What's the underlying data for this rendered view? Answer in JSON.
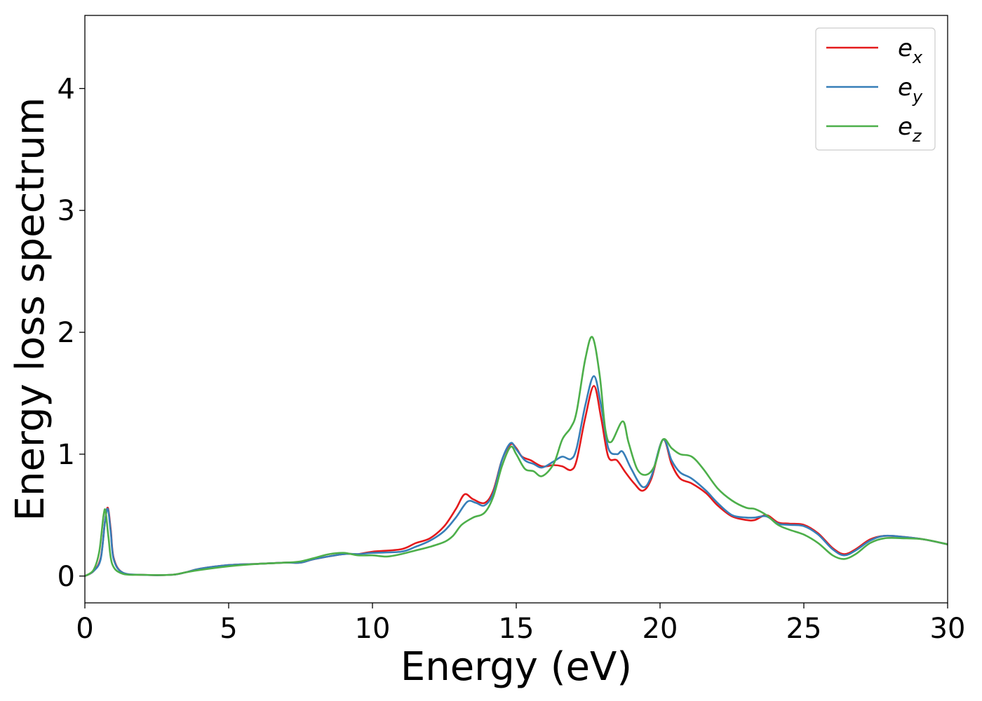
{
  "chart_data": {
    "type": "line",
    "xlabel": "Energy (eV)",
    "ylabel": "Energy loss spectrum",
    "xlim": [
      0,
      30
    ],
    "ylim": [
      -0.22,
      4.6
    ],
    "xticks": [
      0,
      5,
      10,
      15,
      20,
      25,
      30
    ],
    "yticks": [
      0,
      1,
      2,
      3,
      4
    ],
    "grid": false,
    "legend_position": "top-right",
    "series": [
      {
        "name": "e_x",
        "legend_base": "e",
        "legend_sub": "x",
        "color": "#e41a1c",
        "points": [
          [
            0,
            0
          ],
          [
            0.3,
            0.04
          ],
          [
            0.55,
            0.15
          ],
          [
            0.7,
            0.45
          ],
          [
            0.8,
            0.56
          ],
          [
            0.9,
            0.38
          ],
          [
            1.0,
            0.15
          ],
          [
            1.3,
            0.03
          ],
          [
            2,
            0.01
          ],
          [
            3,
            0.01
          ],
          [
            3.5,
            0.03
          ],
          [
            4,
            0.06
          ],
          [
            5,
            0.09
          ],
          [
            6,
            0.1
          ],
          [
            7,
            0.11
          ],
          [
            7.5,
            0.11
          ],
          [
            8,
            0.14
          ],
          [
            9,
            0.18
          ],
          [
            9.5,
            0.18
          ],
          [
            10,
            0.2
          ],
          [
            11,
            0.22
          ],
          [
            11.5,
            0.27
          ],
          [
            12,
            0.31
          ],
          [
            12.5,
            0.41
          ],
          [
            12.9,
            0.55
          ],
          [
            13.2,
            0.67
          ],
          [
            13.5,
            0.63
          ],
          [
            13.9,
            0.6
          ],
          [
            14.2,
            0.7
          ],
          [
            14.5,
            0.95
          ],
          [
            14.8,
            1.08
          ],
          [
            15.0,
            1.05
          ],
          [
            15.2,
            0.98
          ],
          [
            15.5,
            0.95
          ],
          [
            15.9,
            0.9
          ],
          [
            16.3,
            0.91
          ],
          [
            16.6,
            0.9
          ],
          [
            16.9,
            0.87
          ],
          [
            17.1,
            0.95
          ],
          [
            17.4,
            1.3
          ],
          [
            17.7,
            1.56
          ],
          [
            17.95,
            1.3
          ],
          [
            18.2,
            0.98
          ],
          [
            18.5,
            0.95
          ],
          [
            18.8,
            0.85
          ],
          [
            19.1,
            0.76
          ],
          [
            19.4,
            0.7
          ],
          [
            19.7,
            0.8
          ],
          [
            20.1,
            1.12
          ],
          [
            20.4,
            0.92
          ],
          [
            20.7,
            0.8
          ],
          [
            21.1,
            0.76
          ],
          [
            21.6,
            0.68
          ],
          [
            22.0,
            0.58
          ],
          [
            22.5,
            0.49
          ],
          [
            23.0,
            0.46
          ],
          [
            23.3,
            0.46
          ],
          [
            23.7,
            0.5
          ],
          [
            24.1,
            0.44
          ],
          [
            24.5,
            0.43
          ],
          [
            25.0,
            0.42
          ],
          [
            25.5,
            0.35
          ],
          [
            26.0,
            0.23
          ],
          [
            26.4,
            0.18
          ],
          [
            26.8,
            0.22
          ],
          [
            27.3,
            0.3
          ],
          [
            27.8,
            0.33
          ],
          [
            28.5,
            0.32
          ],
          [
            29.2,
            0.3
          ],
          [
            30,
            0.26
          ]
        ]
      },
      {
        "name": "e_y",
        "legend_base": "e",
        "legend_sub": "y",
        "color": "#377eb8",
        "points": [
          [
            0,
            0
          ],
          [
            0.3,
            0.04
          ],
          [
            0.55,
            0.14
          ],
          [
            0.7,
            0.45
          ],
          [
            0.8,
            0.55
          ],
          [
            0.9,
            0.36
          ],
          [
            1.0,
            0.14
          ],
          [
            1.3,
            0.03
          ],
          [
            2,
            0.01
          ],
          [
            3,
            0.01
          ],
          [
            3.5,
            0.03
          ],
          [
            4,
            0.06
          ],
          [
            5,
            0.09
          ],
          [
            6,
            0.1
          ],
          [
            7,
            0.11
          ],
          [
            7.5,
            0.11
          ],
          [
            8,
            0.14
          ],
          [
            9,
            0.18
          ],
          [
            9.5,
            0.18
          ],
          [
            10,
            0.19
          ],
          [
            11,
            0.2
          ],
          [
            11.5,
            0.24
          ],
          [
            12,
            0.29
          ],
          [
            12.5,
            0.37
          ],
          [
            12.9,
            0.48
          ],
          [
            13.3,
            0.61
          ],
          [
            13.6,
            0.6
          ],
          [
            13.9,
            0.58
          ],
          [
            14.2,
            0.68
          ],
          [
            14.5,
            0.95
          ],
          [
            14.8,
            1.09
          ],
          [
            15.0,
            1.04
          ],
          [
            15.3,
            0.95
          ],
          [
            15.6,
            0.92
          ],
          [
            15.9,
            0.89
          ],
          [
            16.3,
            0.94
          ],
          [
            16.6,
            0.98
          ],
          [
            16.9,
            0.96
          ],
          [
            17.1,
            1.05
          ],
          [
            17.4,
            1.4
          ],
          [
            17.7,
            1.64
          ],
          [
            17.95,
            1.4
          ],
          [
            18.2,
            1.05
          ],
          [
            18.5,
            1.0
          ],
          [
            18.7,
            1.02
          ],
          [
            19.0,
            0.88
          ],
          [
            19.4,
            0.73
          ],
          [
            19.7,
            0.82
          ],
          [
            20.1,
            1.12
          ],
          [
            20.4,
            0.95
          ],
          [
            20.7,
            0.85
          ],
          [
            21.1,
            0.8
          ],
          [
            21.6,
            0.7
          ],
          [
            22.0,
            0.6
          ],
          [
            22.5,
            0.5
          ],
          [
            23.0,
            0.48
          ],
          [
            23.3,
            0.48
          ],
          [
            23.7,
            0.49
          ],
          [
            24.1,
            0.43
          ],
          [
            24.5,
            0.42
          ],
          [
            25.0,
            0.41
          ],
          [
            25.5,
            0.34
          ],
          [
            26.0,
            0.22
          ],
          [
            26.4,
            0.17
          ],
          [
            26.8,
            0.21
          ],
          [
            27.3,
            0.29
          ],
          [
            27.8,
            0.33
          ],
          [
            28.5,
            0.32
          ],
          [
            29.2,
            0.3
          ],
          [
            30,
            0.26
          ]
        ]
      },
      {
        "name": "e_z",
        "legend_base": "e",
        "legend_sub": "z",
        "color": "#4daf4a",
        "points": [
          [
            0,
            0
          ],
          [
            0.3,
            0.05
          ],
          [
            0.5,
            0.2
          ],
          [
            0.65,
            0.5
          ],
          [
            0.72,
            0.53
          ],
          [
            0.82,
            0.32
          ],
          [
            0.95,
            0.1
          ],
          [
            1.3,
            0.02
          ],
          [
            2,
            0.01
          ],
          [
            3,
            0.01
          ],
          [
            3.5,
            0.03
          ],
          [
            4,
            0.05
          ],
          [
            5,
            0.08
          ],
          [
            6,
            0.1
          ],
          [
            7,
            0.11
          ],
          [
            7.5,
            0.12
          ],
          [
            8,
            0.15
          ],
          [
            8.5,
            0.18
          ],
          [
            9,
            0.19
          ],
          [
            9.5,
            0.17
          ],
          [
            10,
            0.17
          ],
          [
            10.5,
            0.16
          ],
          [
            11,
            0.18
          ],
          [
            11.5,
            0.21
          ],
          [
            12,
            0.24
          ],
          [
            12.5,
            0.28
          ],
          [
            12.8,
            0.33
          ],
          [
            13.1,
            0.42
          ],
          [
            13.5,
            0.48
          ],
          [
            13.9,
            0.52
          ],
          [
            14.2,
            0.65
          ],
          [
            14.5,
            0.9
          ],
          [
            14.8,
            1.06
          ],
          [
            15.0,
            1.0
          ],
          [
            15.3,
            0.88
          ],
          [
            15.6,
            0.86
          ],
          [
            15.9,
            0.82
          ],
          [
            16.3,
            0.92
          ],
          [
            16.6,
            1.12
          ],
          [
            16.9,
            1.22
          ],
          [
            17.1,
            1.35
          ],
          [
            17.4,
            1.78
          ],
          [
            17.65,
            1.96
          ],
          [
            17.9,
            1.65
          ],
          [
            18.1,
            1.2
          ],
          [
            18.3,
            1.1
          ],
          [
            18.7,
            1.27
          ],
          [
            18.9,
            1.1
          ],
          [
            19.2,
            0.88
          ],
          [
            19.5,
            0.83
          ],
          [
            19.8,
            0.9
          ],
          [
            20.1,
            1.12
          ],
          [
            20.4,
            1.05
          ],
          [
            20.7,
            1.0
          ],
          [
            21.1,
            0.98
          ],
          [
            21.5,
            0.88
          ],
          [
            22.0,
            0.72
          ],
          [
            22.5,
            0.62
          ],
          [
            23.0,
            0.56
          ],
          [
            23.3,
            0.55
          ],
          [
            23.7,
            0.5
          ],
          [
            24.1,
            0.42
          ],
          [
            24.5,
            0.38
          ],
          [
            25.0,
            0.34
          ],
          [
            25.5,
            0.27
          ],
          [
            26.0,
            0.17
          ],
          [
            26.4,
            0.14
          ],
          [
            26.8,
            0.18
          ],
          [
            27.3,
            0.27
          ],
          [
            27.8,
            0.31
          ],
          [
            28.5,
            0.31
          ],
          [
            29.2,
            0.3
          ],
          [
            30,
            0.26
          ]
        ]
      }
    ]
  }
}
